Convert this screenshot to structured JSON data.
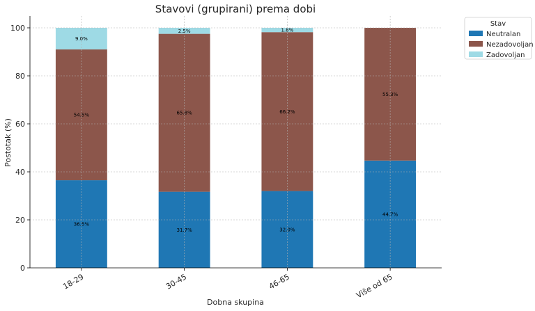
{
  "chart_data": {
    "type": "bar",
    "stacked": true,
    "title": "Stavovi (grupirani) prema dobi",
    "xlabel": "Dobna skupina",
    "ylabel": "Postotak (%)",
    "ylim": [
      0,
      100
    ],
    "yticks": [
      "0",
      "20",
      "40",
      "60",
      "80",
      "100"
    ],
    "categories": [
      "18-29",
      "30-45",
      "46-65",
      "Više od 65"
    ],
    "series": [
      {
        "name": "Neutralan",
        "color": "#1f77b4",
        "values": [
          36.5,
          31.7,
          32.0,
          44.7
        ],
        "labels": [
          "36.5%",
          "31.7%",
          "32.0%",
          "44.7%"
        ]
      },
      {
        "name": "Nezadovoljan",
        "color": "#8c564b",
        "values": [
          54.5,
          65.8,
          66.2,
          55.3
        ],
        "labels": [
          "54.5%",
          "65.8%",
          "66.2%",
          "55.3%"
        ]
      },
      {
        "name": "Zadovoljan",
        "color": "#9edae5",
        "values": [
          9.0,
          2.5,
          1.8,
          0
        ],
        "labels": [
          "9.0%",
          "2.5%",
          "1.8%",
          ""
        ]
      }
    ],
    "legend": {
      "title": "Stav",
      "position": "top-right-outside"
    },
    "grid": true
  }
}
